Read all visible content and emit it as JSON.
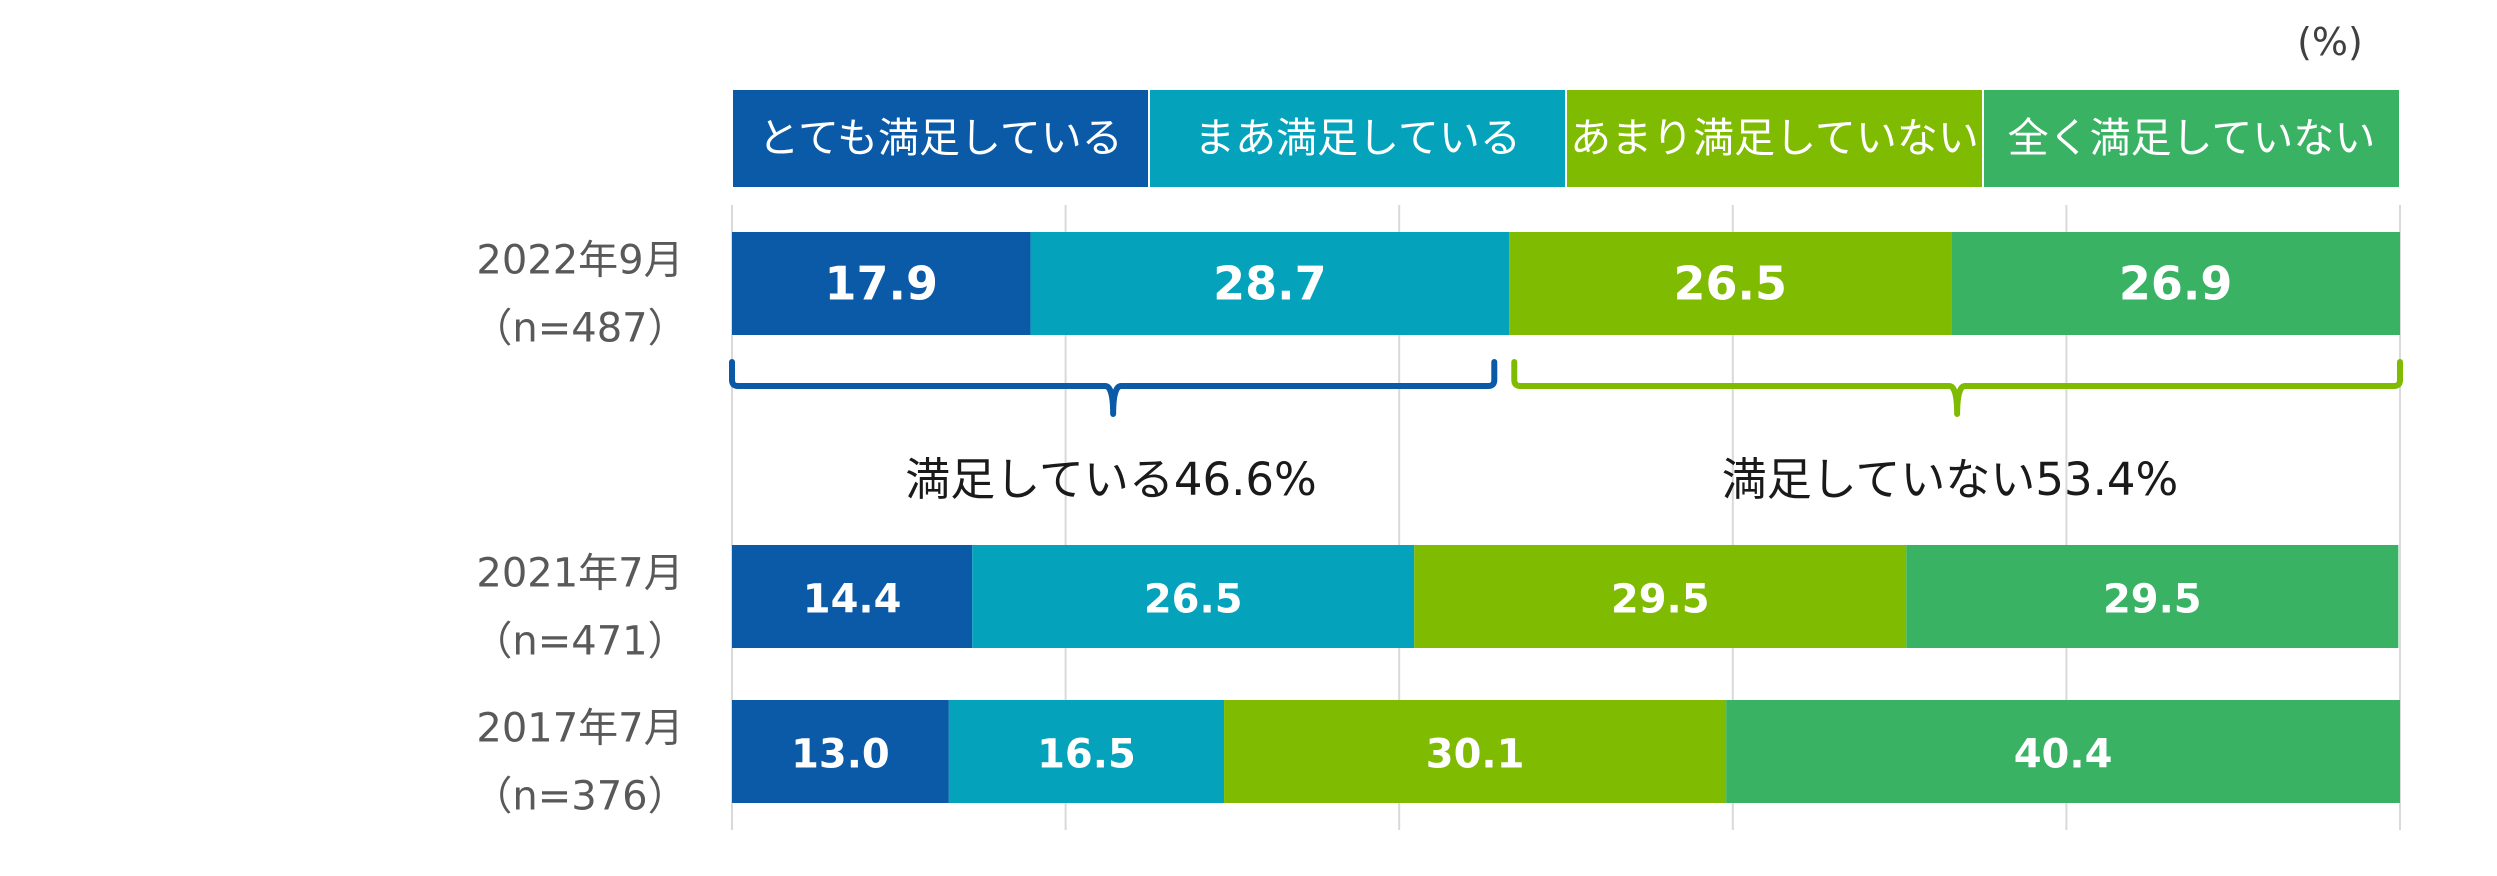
{
  "unit_label": "(%)",
  "colors": [
    "#0a5aa8",
    "#04a3bb",
    "#7fbb00",
    "#39b263"
  ],
  "bracket_colors": {
    "satisfied": "#0a5aa8",
    "not_satisfied": "#7fbb00"
  },
  "summary": {
    "satisfied": "満足している46.6%",
    "not_satisfied": "満足していない53.4%"
  },
  "chart_data": {
    "type": "bar",
    "orientation": "horizontal-stacked-100",
    "xlim": [
      0,
      100
    ],
    "grid": true,
    "legend_position": "top",
    "series": [
      {
        "name": "とても満足している",
        "values": [
          17.9,
          14.4,
          13.0
        ]
      },
      {
        "name": "まあ満足している",
        "values": [
          28.7,
          26.5,
          16.5
        ]
      },
      {
        "name": "あまり満足していない",
        "values": [
          26.5,
          29.5,
          30.1
        ]
      },
      {
        "name": "全く満足していない",
        "values": [
          26.9,
          29.5,
          40.4
        ]
      }
    ],
    "categories": [
      {
        "line1": "2022年9月",
        "line2": "（n=487）"
      },
      {
        "line1": "2021年7月",
        "line2": "（n=471）"
      },
      {
        "line1": "2017年7月",
        "line2": "（n=376）"
      }
    ]
  }
}
